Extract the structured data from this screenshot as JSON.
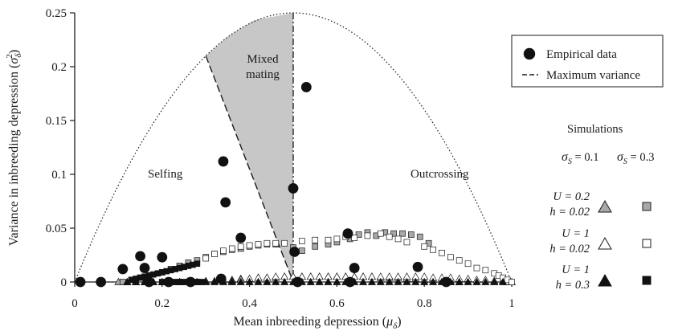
{
  "chart_data": {
    "type": "scatter",
    "xlabel": "Mean inbreeding depression (",
    "xlabel_sym": "μ",
    "xlabel_sub": "δ",
    "xlabel_close": ")",
    "ylabel": "Variance in inbreeding depression (",
    "ylabel_sym": "σ",
    "ylabel_sub": "δ",
    "ylabel_sup": "2",
    "ylabel_close": ")",
    "xlim": [
      0,
      1
    ],
    "ylim": [
      0,
      0.25
    ],
    "x_ticks": [
      0,
      0.2,
      0.4,
      0.6,
      0.8,
      1
    ],
    "x_tick_labels": [
      "0",
      "0.2",
      "0.4",
      "0.6",
      "0.8",
      "1"
    ],
    "y_ticks": [
      0,
      0.05,
      0.1,
      0.15,
      0.2,
      0.25
    ],
    "y_tick_labels": [
      "0",
      "0.05",
      "0.1",
      "0.15",
      "0.2",
      "0.25"
    ],
    "grid": false,
    "regions": {
      "selfing": "Selfing",
      "mixed_line1": "Mixed",
      "mixed_line2": "mating",
      "outcrossing": "Outcrossing"
    },
    "mixed_region_polygon": [
      [
        0.3,
        0.21
      ],
      [
        0.35,
        0.228
      ],
      [
        0.41,
        0.243
      ],
      [
        0.5,
        0.25
      ],
      [
        0.5,
        0.0
      ],
      [
        0.3,
        0.21
      ]
    ],
    "legend": {
      "empirical": "Empirical data",
      "max_variance": "Maximum variance",
      "simulations": "Simulations",
      "sigma_col1": "σ",
      "sigma_col1_sub": "S",
      "sigma_col1_value": " = 0.1",
      "sigma_col2": "σ",
      "sigma_col2_sub": "S",
      "sigma_col2_value": " = 0.3",
      "rows": [
        {
          "u": "U = 0.2",
          "h": "h = 0.02"
        },
        {
          "u": "U = 1",
          "h": "h = 0.02"
        },
        {
          "u": "U = 1",
          "h": "h = 0.3"
        }
      ]
    },
    "colors": {
      "grey": "#a8a8a8",
      "black": "#111111",
      "region_fill": "#c7c7c7"
    },
    "empirical": [
      {
        "x": 0.013,
        "y": 0.0
      },
      {
        "x": 0.06,
        "y": 0.0
      },
      {
        "x": 0.11,
        "y": 0.012
      },
      {
        "x": 0.15,
        "y": 0.024
      },
      {
        "x": 0.16,
        "y": 0.013
      },
      {
        "x": 0.2,
        "y": 0.023
      },
      {
        "x": 0.17,
        "y": 0.0
      },
      {
        "x": 0.215,
        "y": 0.0
      },
      {
        "x": 0.265,
        "y": 0.0
      },
      {
        "x": 0.34,
        "y": 0.112
      },
      {
        "x": 0.345,
        "y": 0.074
      },
      {
        "x": 0.38,
        "y": 0.041
      },
      {
        "x": 0.335,
        "y": 0.003
      },
      {
        "x": 0.5,
        "y": 0.087
      },
      {
        "x": 0.503,
        "y": 0.028
      },
      {
        "x": 0.53,
        "y": 0.181
      },
      {
        "x": 0.51,
        "y": 0.0
      },
      {
        "x": 0.625,
        "y": 0.045
      },
      {
        "x": 0.63,
        "y": 0.0
      },
      {
        "x": 0.64,
        "y": 0.013
      },
      {
        "x": 0.785,
        "y": 0.014
      },
      {
        "x": 0.85,
        "y": 0.0
      }
    ],
    "series": [
      {
        "marker": "triangle",
        "fill": "grey",
        "x": [
          0.1,
          0.12,
          0.14,
          0.16,
          0.18,
          0.2,
          0.22,
          0.24,
          0.26,
          0.28,
          0.3,
          0.32,
          0.34,
          0.36,
          0.38,
          0.4,
          0.42,
          0.44,
          0.46,
          0.48,
          0.5,
          0.52,
          0.54,
          0.56,
          0.58,
          0.6,
          0.62,
          0.64,
          0.66,
          0.68,
          0.7,
          0.72,
          0.74,
          0.76,
          0.78,
          0.8,
          0.82,
          0.84,
          0.86,
          0.88
        ],
        "y": [
          0.0,
          0.0,
          0.0,
          0.0,
          0.0,
          0.0,
          0.0,
          0.0,
          0.0,
          0.0,
          0.001,
          0.001,
          0.002,
          0.002,
          0.003,
          0.003,
          0.004,
          0.004,
          0.004,
          0.005,
          0.005,
          0.005,
          0.005,
          0.005,
          0.005,
          0.005,
          0.005,
          0.005,
          0.005,
          0.005,
          0.004,
          0.004,
          0.004,
          0.003,
          0.003,
          0.002,
          0.002,
          0.001,
          0.001,
          0.0
        ]
      },
      {
        "marker": "square",
        "fill": "grey",
        "x": [
          0.11,
          0.13,
          0.15,
          0.17,
          0.2,
          0.22,
          0.24,
          0.26,
          0.28,
          0.3,
          0.32,
          0.34,
          0.36,
          0.38,
          0.4,
          0.42,
          0.44,
          0.46,
          0.5,
          0.52,
          0.55,
          0.58,
          0.6,
          0.63,
          0.65,
          0.67,
          0.69,
          0.71,
          0.73,
          0.75,
          0.77,
          0.79,
          0.81
        ],
        "y": [
          0.0,
          0.002,
          0.004,
          0.006,
          0.009,
          0.012,
          0.015,
          0.018,
          0.02,
          0.023,
          0.026,
          0.028,
          0.03,
          0.031,
          0.033,
          0.034,
          0.035,
          0.035,
          0.032,
          0.029,
          0.033,
          0.035,
          0.037,
          0.04,
          0.044,
          0.046,
          0.043,
          0.046,
          0.045,
          0.045,
          0.044,
          0.042,
          0.036
        ]
      },
      {
        "marker": "triangle",
        "fill": "white",
        "x": [
          0.36,
          0.38,
          0.4,
          0.42,
          0.44,
          0.46,
          0.48,
          0.5,
          0.52,
          0.54,
          0.56,
          0.58,
          0.6,
          0.62,
          0.64,
          0.66,
          0.68,
          0.7,
          0.72,
          0.74,
          0.76,
          0.78,
          0.8,
          0.82,
          0.84,
          0.86,
          0.88,
          0.9,
          0.92,
          0.94,
          0.96,
          0.98,
          0.99,
          1.0
        ],
        "y": [
          0.001,
          0.002,
          0.003,
          0.004,
          0.004,
          0.005,
          0.005,
          0.005,
          0.005,
          0.005,
          0.005,
          0.005,
          0.005,
          0.005,
          0.005,
          0.005,
          0.005,
          0.005,
          0.005,
          0.005,
          0.005,
          0.005,
          0.005,
          0.004,
          0.004,
          0.004,
          0.003,
          0.003,
          0.002,
          0.002,
          0.001,
          0.001,
          0.0,
          0.0
        ]
      },
      {
        "marker": "square",
        "fill": "white",
        "x": [
          0.3,
          0.32,
          0.34,
          0.36,
          0.38,
          0.4,
          0.42,
          0.44,
          0.46,
          0.48,
          0.52,
          0.55,
          0.58,
          0.6,
          0.62,
          0.64,
          0.67,
          0.7,
          0.72,
          0.74,
          0.76,
          0.8,
          0.82,
          0.84,
          0.86,
          0.88,
          0.9,
          0.92,
          0.94,
          0.96,
          0.97,
          0.98,
          0.99,
          1.0
        ],
        "y": [
          0.022,
          0.026,
          0.029,
          0.031,
          0.033,
          0.034,
          0.035,
          0.036,
          0.036,
          0.036,
          0.038,
          0.039,
          0.039,
          0.04,
          0.042,
          0.041,
          0.043,
          0.045,
          0.042,
          0.04,
          0.037,
          0.033,
          0.03,
          0.027,
          0.023,
          0.02,
          0.017,
          0.013,
          0.011,
          0.008,
          0.006,
          0.004,
          0.002,
          0.0
        ]
      },
      {
        "marker": "triangle",
        "fill": "black",
        "x": [
          0.12,
          0.14,
          0.16,
          0.18,
          0.2,
          0.22,
          0.24,
          0.26,
          0.28,
          0.3,
          0.32,
          0.34,
          0.36,
          0.38,
          0.4,
          0.42,
          0.44,
          0.46,
          0.48,
          0.5,
          0.52,
          0.54,
          0.56,
          0.58,
          0.6,
          0.62,
          0.64,
          0.66,
          0.68,
          0.7,
          0.72,
          0.74,
          0.76,
          0.78,
          0.8,
          0.82,
          0.84,
          0.86,
          0.88,
          0.9,
          0.92,
          0.94,
          0.96,
          0.98
        ],
        "y": [
          0.0,
          0.0,
          0.0,
          0.0,
          0.0,
          0.0,
          0.0,
          0.0,
          0.0,
          0.0,
          0.0,
          0.0,
          0.0,
          0.0,
          0.0,
          0.0,
          0.0,
          0.0,
          0.0,
          0.0,
          0.0,
          0.0,
          0.0,
          0.0,
          0.0,
          0.0,
          0.0,
          0.0,
          0.0,
          0.0,
          0.0,
          0.0,
          0.0,
          0.0,
          0.0,
          0.0,
          0.0,
          0.0,
          0.0,
          0.0,
          0.0,
          0.0,
          0.0,
          0.0
        ]
      },
      {
        "marker": "square",
        "fill": "black",
        "x": [
          0.13,
          0.14,
          0.15,
          0.16,
          0.17,
          0.18,
          0.19,
          0.2,
          0.21,
          0.22,
          0.23,
          0.24,
          0.25,
          0.26,
          0.27,
          0.28,
          0.2,
          0.21,
          0.22,
          0.23,
          0.24,
          0.25,
          0.26,
          0.27,
          0.28,
          0.29
        ],
        "y": [
          0.002,
          0.003,
          0.004,
          0.005,
          0.006,
          0.007,
          0.008,
          0.009,
          0.01,
          0.011,
          0.012,
          0.013,
          0.014,
          0.015,
          0.016,
          0.017,
          0.0,
          0.0,
          0.0,
          0.0,
          0.0,
          0.0,
          0.0,
          0.0,
          0.0,
          0.0
        ]
      }
    ]
  }
}
